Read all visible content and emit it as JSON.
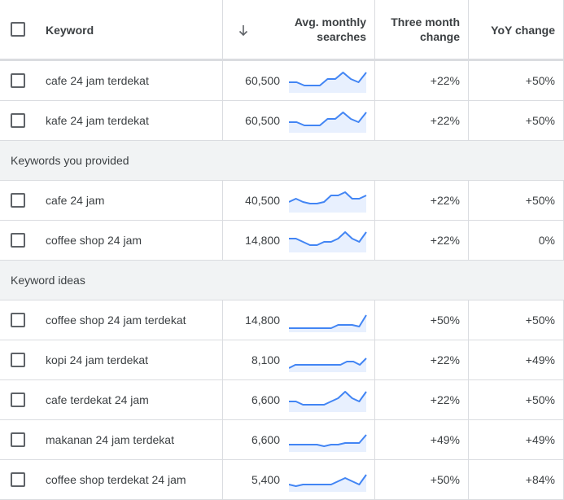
{
  "header": {
    "keyword": "Keyword",
    "avg_line1": "Avg. monthly",
    "avg_line2": "searches",
    "three_line1": "Three month",
    "three_line2": "change",
    "yoy": "YoY change"
  },
  "colors": {
    "spark_line": "#4285f4",
    "spark_fill": "#e8f0fe"
  },
  "rows": [
    {
      "type": "kw",
      "keyword": "cafe 24 jam terdekat",
      "avg": "60,500",
      "three": "+22%",
      "yoy": "+50%",
      "trend": [
        3,
        3,
        2,
        2,
        2,
        4,
        4,
        6,
        4,
        3,
        6
      ]
    },
    {
      "type": "kw",
      "keyword": "kafe 24 jam terdekat",
      "avg": "60,500",
      "three": "+22%",
      "yoy": "+50%",
      "trend": [
        3,
        3,
        2,
        2,
        2,
        4,
        4,
        6,
        4,
        3,
        6
      ]
    },
    {
      "type": "group",
      "label": "Keywords you provided"
    },
    {
      "type": "kw",
      "keyword": "cafe 24 jam",
      "avg": "40,500",
      "three": "+22%",
      "yoy": "+50%",
      "trend": [
        3,
        4,
        3,
        2.5,
        2.5,
        3,
        5,
        5,
        6,
        4,
        4,
        5
      ]
    },
    {
      "type": "kw",
      "keyword": "coffee shop 24 jam",
      "avg": "14,800",
      "three": "+22%",
      "yoy": "0%",
      "trend": [
        4,
        4,
        3,
        2,
        2,
        3,
        3,
        4,
        6,
        4,
        3,
        6
      ]
    },
    {
      "type": "group",
      "label": "Keyword ideas"
    },
    {
      "type": "kw",
      "keyword": "coffee shop 24 jam terdekat",
      "avg": "14,800",
      "three": "+50%",
      "yoy": "+50%",
      "trend": [
        1,
        1,
        1,
        1,
        1,
        1,
        1,
        2,
        2,
        2,
        1.5,
        5
      ]
    },
    {
      "type": "kw",
      "keyword": "kopi 24 jam terdekat",
      "avg": "8,100",
      "three": "+22%",
      "yoy": "+49%",
      "trend": [
        1,
        2,
        2,
        2,
        2,
        2,
        2,
        2,
        2,
        3,
        3,
        2,
        4
      ]
    },
    {
      "type": "kw",
      "keyword": "cafe terdekat 24 jam",
      "avg": "6,600",
      "three": "+22%",
      "yoy": "+50%",
      "trend": [
        3,
        3,
        2,
        2,
        2,
        2,
        3,
        4,
        6,
        4,
        3,
        6
      ]
    },
    {
      "type": "kw",
      "keyword": "makanan 24 jam terdekat",
      "avg": "6,600",
      "three": "+49%",
      "yoy": "+49%",
      "trend": [
        2,
        2,
        2,
        2,
        2,
        1.5,
        2,
        2,
        2.5,
        2.5,
        2.5,
        5
      ]
    },
    {
      "type": "kw",
      "keyword": "coffee shop terdekat 24 jam",
      "avg": "5,400",
      "three": "+50%",
      "yoy": "+84%",
      "trend": [
        2,
        1.5,
        2,
        2,
        2,
        2,
        2,
        3,
        4,
        3,
        2,
        5
      ]
    }
  ]
}
